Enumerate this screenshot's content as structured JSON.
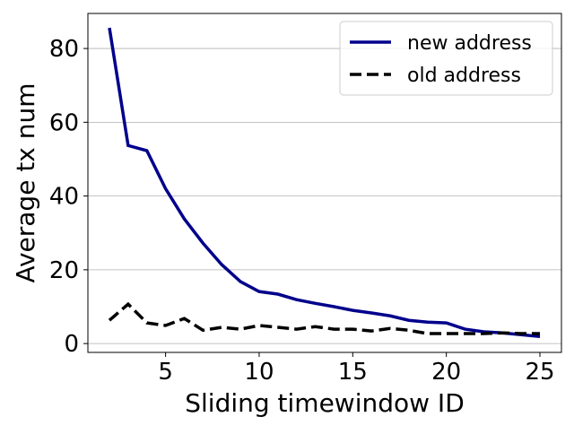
{
  "chart_data": {
    "type": "line",
    "x_label": "Sliding timewindow ID",
    "y_label": "Average tx num",
    "x": [
      2,
      3,
      4,
      5,
      6,
      7,
      8,
      9,
      10,
      11,
      12,
      13,
      14,
      15,
      16,
      17,
      18,
      19,
      20,
      21,
      22,
      23,
      24,
      25
    ],
    "series": [
      {
        "name": "new address",
        "color": "#00008b",
        "dash": "solid",
        "values": [
          85.6,
          53.7,
          52.3,
          42,
          33.8,
          27.2,
          21.4,
          16.8,
          14.1,
          13.4,
          11.9,
          10.9,
          10,
          9,
          8.3,
          7.5,
          6.3,
          5.8,
          5.6,
          3.9,
          3.2,
          2.9,
          2.4,
          1.9
        ]
      },
      {
        "name": "old address",
        "color": "#000000",
        "dash": "dashed",
        "values": [
          6.3,
          10.7,
          5.6,
          4.9,
          6.8,
          3.6,
          4.4,
          3.9,
          4.9,
          4.4,
          3.9,
          4.6,
          3.9,
          3.9,
          3.4,
          4.1,
          3.6,
          2.7,
          2.7,
          2.7,
          2.7,
          2.9,
          2.7,
          2.7
        ]
      }
    ],
    "xlim": [
      0.85,
      26.15
    ],
    "xticks": [
      5,
      10,
      15,
      20,
      25
    ],
    "ylim": [
      -2.4,
      89.5
    ],
    "yticks": [
      0,
      20,
      40,
      60,
      80
    ],
    "grid": "y",
    "legend": "upper right"
  }
}
